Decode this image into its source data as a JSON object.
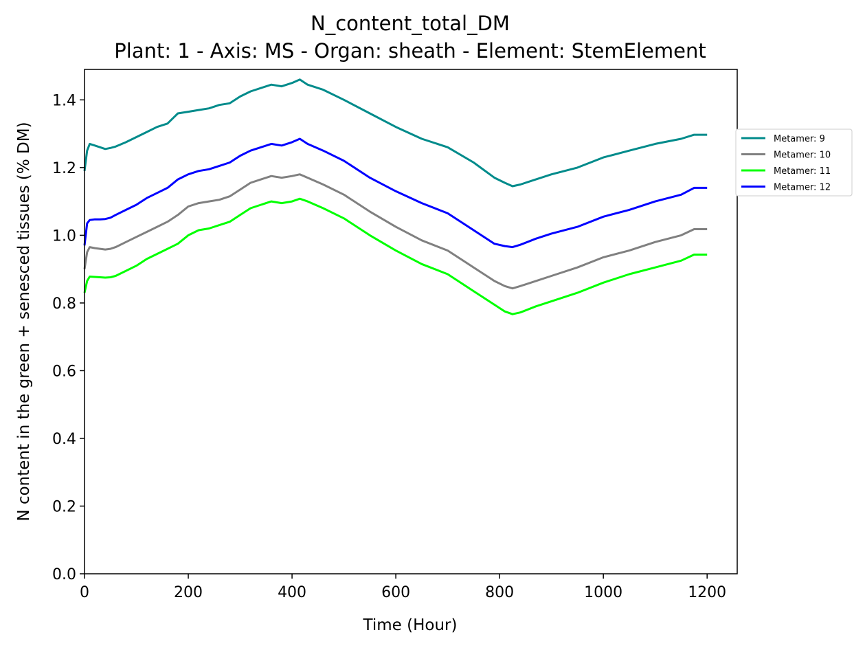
{
  "chart_data": {
    "type": "line",
    "title": "N_content_total_DM",
    "subtitle": "Plant: 1 - Axis: MS - Organ: sheath - Element: StemElement",
    "xlabel": "Time (Hour)",
    "ylabel": "N content in the green + senesced tissues (% DM)",
    "xlim": [
      0,
      1258
    ],
    "ylim": [
      0,
      1.49
    ],
    "xticks": [
      "0",
      "200",
      "400",
      "600",
      "800",
      "1000",
      "1200"
    ],
    "yticks": [
      "0.0",
      "0.2",
      "0.4",
      "0.6",
      "0.8",
      "1.0",
      "1.2",
      "1.4"
    ],
    "grid": false,
    "legend_position": "outside-right",
    "x": [
      0,
      5,
      10,
      20,
      30,
      40,
      50,
      60,
      80,
      100,
      120,
      140,
      160,
      180,
      200,
      220,
      240,
      260,
      280,
      300,
      320,
      340,
      360,
      380,
      400,
      415,
      430,
      460,
      500,
      550,
      600,
      650,
      700,
      750,
      790,
      810,
      825,
      840,
      870,
      900,
      950,
      1000,
      1050,
      1100,
      1150,
      1175,
      1200
    ],
    "series": [
      {
        "name": "Metamer: 9",
        "color": "#008b8b",
        "values": [
          1.19,
          1.25,
          1.27,
          1.265,
          1.26,
          1.255,
          1.258,
          1.262,
          1.275,
          1.29,
          1.305,
          1.32,
          1.33,
          1.36,
          1.365,
          1.37,
          1.375,
          1.385,
          1.39,
          1.41,
          1.425,
          1.435,
          1.445,
          1.44,
          1.45,
          1.46,
          1.445,
          1.43,
          1.4,
          1.36,
          1.32,
          1.285,
          1.26,
          1.215,
          1.17,
          1.155,
          1.145,
          1.15,
          1.165,
          1.18,
          1.2,
          1.23,
          1.25,
          1.27,
          1.285,
          1.297,
          1.297
        ]
      },
      {
        "name": "Metamer: 10",
        "color": "#808080",
        "values": [
          0.9,
          0.95,
          0.965,
          0.962,
          0.96,
          0.958,
          0.96,
          0.965,
          0.98,
          0.995,
          1.01,
          1.025,
          1.04,
          1.06,
          1.085,
          1.095,
          1.1,
          1.105,
          1.115,
          1.135,
          1.155,
          1.165,
          1.175,
          1.17,
          1.175,
          1.18,
          1.17,
          1.15,
          1.12,
          1.07,
          1.025,
          0.985,
          0.955,
          0.905,
          0.865,
          0.85,
          0.843,
          0.85,
          0.865,
          0.88,
          0.905,
          0.935,
          0.955,
          0.98,
          1.0,
          1.018,
          1.018
        ]
      },
      {
        "name": "Metamer: 11",
        "color": "#00ff00",
        "values": [
          0.83,
          0.865,
          0.878,
          0.877,
          0.876,
          0.875,
          0.876,
          0.88,
          0.895,
          0.91,
          0.93,
          0.945,
          0.96,
          0.975,
          1.0,
          1.015,
          1.02,
          1.03,
          1.04,
          1.06,
          1.08,
          1.09,
          1.1,
          1.095,
          1.1,
          1.108,
          1.1,
          1.08,
          1.05,
          1.0,
          0.955,
          0.915,
          0.885,
          0.835,
          0.795,
          0.775,
          0.767,
          0.772,
          0.79,
          0.805,
          0.83,
          0.86,
          0.885,
          0.905,
          0.925,
          0.943,
          0.943
        ]
      },
      {
        "name": "Metamer: 12",
        "color": "#0000ff",
        "values": [
          0.97,
          1.035,
          1.045,
          1.047,
          1.047,
          1.048,
          1.052,
          1.06,
          1.075,
          1.09,
          1.11,
          1.125,
          1.14,
          1.165,
          1.18,
          1.19,
          1.195,
          1.205,
          1.215,
          1.235,
          1.25,
          1.26,
          1.27,
          1.265,
          1.275,
          1.285,
          1.27,
          1.25,
          1.22,
          1.17,
          1.13,
          1.095,
          1.065,
          1.015,
          0.975,
          0.968,
          0.965,
          0.972,
          0.99,
          1.005,
          1.025,
          1.055,
          1.075,
          1.1,
          1.12,
          1.14,
          1.14
        ]
      }
    ]
  }
}
